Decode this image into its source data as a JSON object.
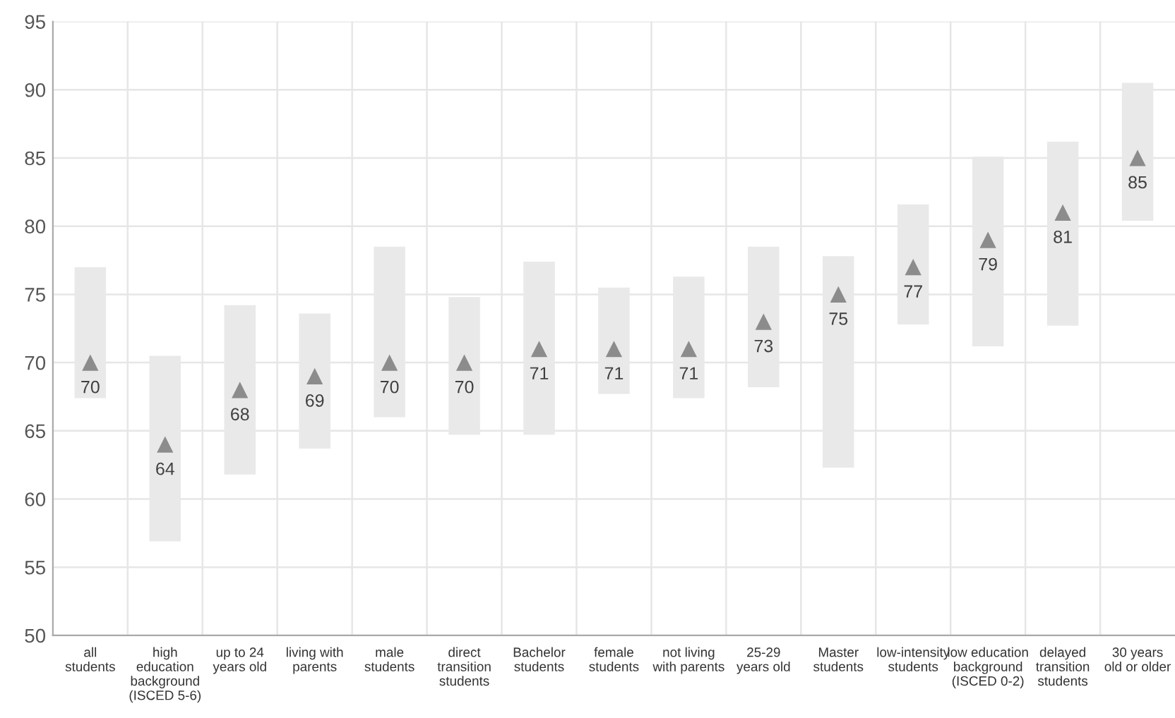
{
  "chart_data": {
    "type": "bar",
    "categories": [
      "all\nstudents",
      "high\neducation\nbackground\n(ISCED 5-6)",
      "up to 24\nyears old",
      "living with\nparents",
      "male\nstudents",
      "direct\ntransition\nstudents",
      "Bachelor\nstudents",
      "female\nstudents",
      "not living\nwith parents",
      "25-29\nyears old",
      "Master\nstudents",
      "low-intensity\nstudents",
      "low education\nbackground\n(ISCED 0-2)",
      "delayed\ntransition\nstudents",
      "30 years\nold or older"
    ],
    "series": [
      {
        "color": "#e9e9e9",
        "base": [
          67.4,
          56.9,
          61.8,
          63.7,
          66.0,
          64.7,
          64.7,
          67.7,
          67.4,
          68.2,
          62.3,
          72.8,
          71.2,
          72.7,
          80.4
        ],
        "values": [
          9.6,
          13.6,
          12.4,
          9.9,
          12.5,
          10.1,
          12.7,
          7.8,
          8.9,
          10.3,
          15.5,
          8.8,
          13.9,
          13.5,
          10.1
        ]
      },
      {
        "type": "scatter",
        "color": "#8c8c8c",
        "marker": "triangle",
        "values": [
          70,
          64,
          68,
          69,
          70,
          70,
          71,
          71,
          71,
          73,
          75,
          77,
          79,
          81,
          85
        ],
        "value_labels": [
          "70",
          "64",
          "68",
          "69",
          "70",
          "70",
          "71",
          "71",
          "71",
          "73",
          "75",
          "77",
          "79",
          "81",
          "85"
        ]
      }
    ],
    "ylim": [
      50,
      95
    ],
    "yticks": [
      50,
      55,
      60,
      65,
      70,
      75,
      80,
      85,
      90,
      95
    ],
    "grid": true
  }
}
